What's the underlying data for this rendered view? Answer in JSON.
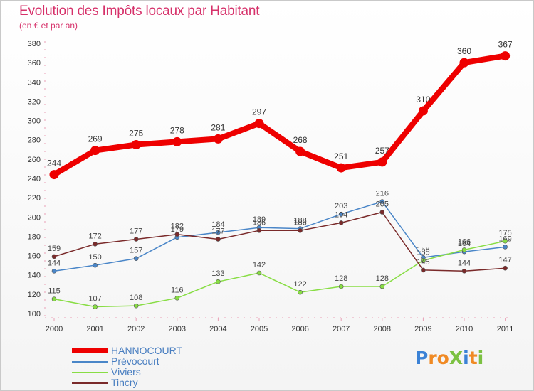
{
  "chart_data": {
    "type": "line",
    "title": "Evolution des Impôts locaux par Habitant",
    "subtitle": "(en € et par an)",
    "xlabel": "",
    "ylabel": "",
    "x": [
      "2000",
      "2001",
      "2002",
      "2003",
      "2004",
      "2005",
      "2006",
      "2007",
      "2008",
      "2009",
      "2010",
      "2011"
    ],
    "ylim": [
      100,
      380
    ],
    "yticks": [
      100,
      120,
      140,
      160,
      180,
      200,
      220,
      240,
      260,
      280,
      300,
      320,
      340,
      360,
      380
    ],
    "grid": false,
    "legend_position": "bottom-left",
    "series": [
      {
        "name": "HANNOCOURT",
        "color": "#ee0000",
        "values": [
          244,
          269,
          275,
          278,
          281,
          297,
          268,
          251,
          257,
          310,
          360,
          367
        ]
      },
      {
        "name": "Prévocourt",
        "color": "#4a86c8",
        "values": [
          144,
          150,
          157,
          179,
          184,
          189,
          188,
          203,
          216,
          158,
          164,
          169
        ]
      },
      {
        "name": "Viviers",
        "color": "#88dd44",
        "values": [
          115,
          107,
          108,
          116,
          133,
          142,
          122,
          128,
          128,
          155,
          166,
          175
        ]
      },
      {
        "name": "Tincry",
        "color": "#7a2a2a",
        "values": [
          159,
          172,
          177,
          182,
          177,
          186,
          186,
          194,
          205,
          145,
          144,
          147
        ]
      }
    ]
  },
  "logo": {
    "text": "ProXiti",
    "letters": [
      {
        "ch": "P",
        "color": "#3b82d6"
      },
      {
        "ch": "r",
        "color": "#f08a24"
      },
      {
        "ch": "o",
        "color": "#f08a24"
      },
      {
        "ch": "X",
        "color": "#7cc142"
      },
      {
        "ch": "i",
        "color": "#3b82d6"
      },
      {
        "ch": "t",
        "color": "#f08a24"
      },
      {
        "ch": "i",
        "color": "#7cc142"
      }
    ]
  }
}
